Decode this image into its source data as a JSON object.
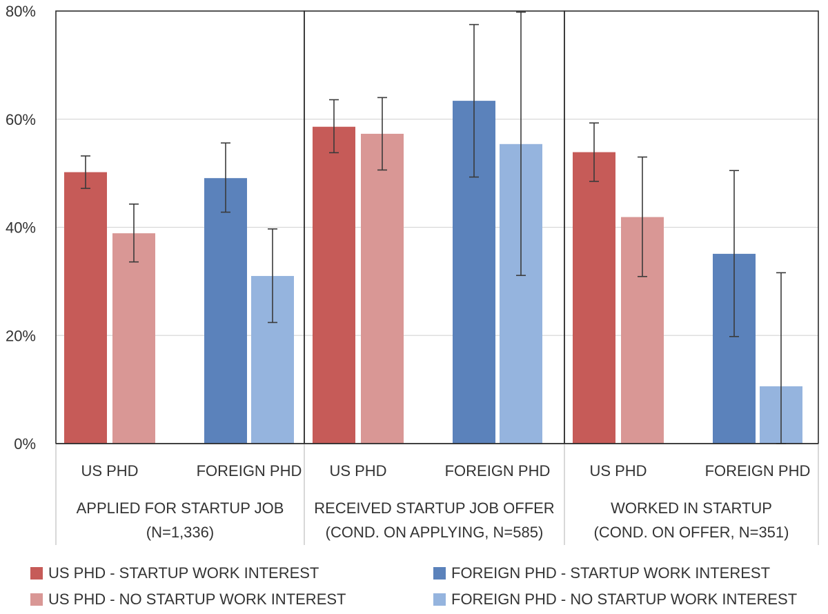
{
  "chart_data": {
    "type": "bar",
    "title": "",
    "ylabel": "",
    "xlabel": "",
    "ylim": [
      0,
      80
    ],
    "yticks": [
      0,
      20,
      40,
      60,
      80
    ],
    "ytick_labels": [
      "0%",
      "20%",
      "40%",
      "60%",
      "80%"
    ],
    "grid": true,
    "legend_position": "bottom",
    "series": [
      {
        "name": "US PHD - STARTUP WORK INTEREST",
        "color": "#c65b58"
      },
      {
        "name": "US PHD - NO STARTUP WORK INTEREST",
        "color": "#d99795"
      },
      {
        "name": "FOREIGN PHD - STARTUP WORK INTEREST",
        "color": "#5b82bb"
      },
      {
        "name": "FOREIGN PHD - NO STARTUP WORK INTEREST",
        "color": "#95b4de"
      }
    ],
    "panels": [
      {
        "label_line1": "APPLIED FOR STARTUP JOB",
        "label_line2": "(N=1,336)",
        "categories": [
          {
            "label": "US PHD",
            "bars": [
              {
                "series": 0,
                "value": 50.2,
                "err_low": 47.2,
                "err_high": 53.2
              },
              {
                "series": 1,
                "value": 38.9,
                "err_low": 33.6,
                "err_high": 44.3
              }
            ]
          },
          {
            "label": "FOREIGN PHD",
            "bars": [
              {
                "series": 2,
                "value": 49.1,
                "err_low": 42.8,
                "err_high": 55.6
              },
              {
                "series": 3,
                "value": 31.0,
                "err_low": 22.4,
                "err_high": 39.7
              }
            ]
          }
        ]
      },
      {
        "label_line1": "RECEIVED STARTUP JOB OFFER",
        "label_line2": "(COND. ON APPLYING, N=585)",
        "categories": [
          {
            "label": "US PHD",
            "bars": [
              {
                "series": 0,
                "value": 58.6,
                "err_low": 53.8,
                "err_high": 63.6
              },
              {
                "series": 1,
                "value": 57.3,
                "err_low": 50.6,
                "err_high": 64.0
              }
            ]
          },
          {
            "label": "FOREIGN PHD",
            "bars": [
              {
                "series": 2,
                "value": 63.4,
                "err_low": 49.3,
                "err_high": 77.5
              },
              {
                "series": 3,
                "value": 55.4,
                "err_low": 31.1,
                "err_high": 79.8
              }
            ]
          }
        ]
      },
      {
        "label_line1": "WORKED IN STARTUP",
        "label_line2": "(COND. ON OFFER, N=351)",
        "categories": [
          {
            "label": "US PHD",
            "bars": [
              {
                "series": 0,
                "value": 53.9,
                "err_low": 48.5,
                "err_high": 59.3
              },
              {
                "series": 1,
                "value": 41.9,
                "err_low": 30.9,
                "err_high": 53.0
              }
            ]
          },
          {
            "label": "FOREIGN PHD",
            "bars": [
              {
                "series": 2,
                "value": 35.1,
                "err_low": 19.8,
                "err_high": 50.5
              },
              {
                "series": 3,
                "value": 10.6,
                "err_low": 0.0,
                "err_high": 31.6
              }
            ]
          }
        ]
      }
    ]
  }
}
